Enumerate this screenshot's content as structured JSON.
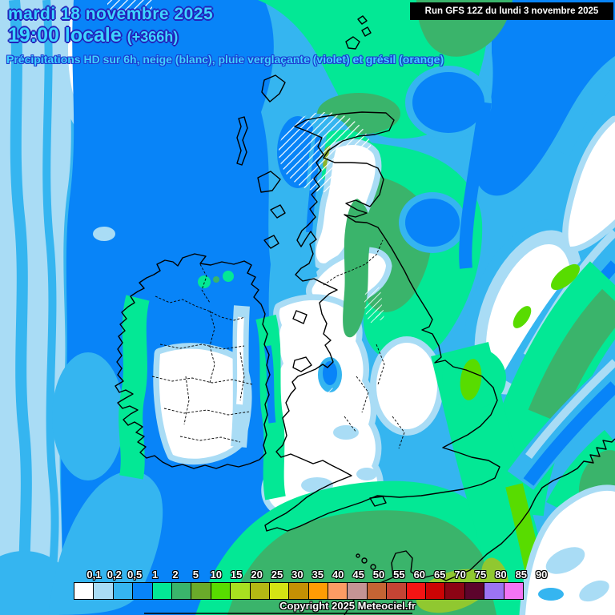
{
  "header": {
    "date_line": "mardi 18 novembre 2025",
    "time_line": "19:00 locale",
    "time_offset": "(+366h)",
    "subtitle": "Précipitations HD sur 6h, neige (blanc), pluie verglaçante (violet) et grésil (orange)",
    "run_info": "Run GFS 12Z du lundi 3 novembre 2025",
    "text_color": "#3fd4ff",
    "text_outline_color": "#2222bb"
  },
  "legend": {
    "unit_labels": [
      "0,1",
      "0,2",
      "0,5",
      "1",
      "2",
      "5",
      "10",
      "15",
      "20",
      "25",
      "30",
      "35",
      "40",
      "45",
      "50",
      "55",
      "60",
      "65",
      "70",
      "75",
      "80",
      "85",
      "90"
    ],
    "swatch_colors": [
      "#ffffff",
      "#a9dcf5",
      "#35b5f0",
      "#0884f8",
      "#03e895",
      "#3ab46b",
      "#6aaa2a",
      "#58dc00",
      "#a8e020",
      "#b4b814",
      "#d4e414",
      "#c49004",
      "#ff9c04",
      "#fc9c64",
      "#c49494",
      "#c46434",
      "#c44434",
      "#f41414",
      "#cc0404",
      "#8c0414",
      "#5c042c",
      "#9c74f4",
      "#f474f4"
    ]
  },
  "footer": {
    "copyright": "Copyright 2025 Meteociel.fr"
  },
  "map": {
    "region": "British Isles and western Europe",
    "palette": {
      "trace": "#a9dcf5",
      "light": "#35b5f0",
      "moderate": "#0884f8",
      "rain_1mm": "#03e895",
      "rain_2mm": "#3ab46b",
      "rain_5mm": "#8cb42c",
      "rain_10mm": "#58dc00",
      "rain_15mm": "#90c830",
      "snow_hatch": "#ffffff"
    }
  }
}
